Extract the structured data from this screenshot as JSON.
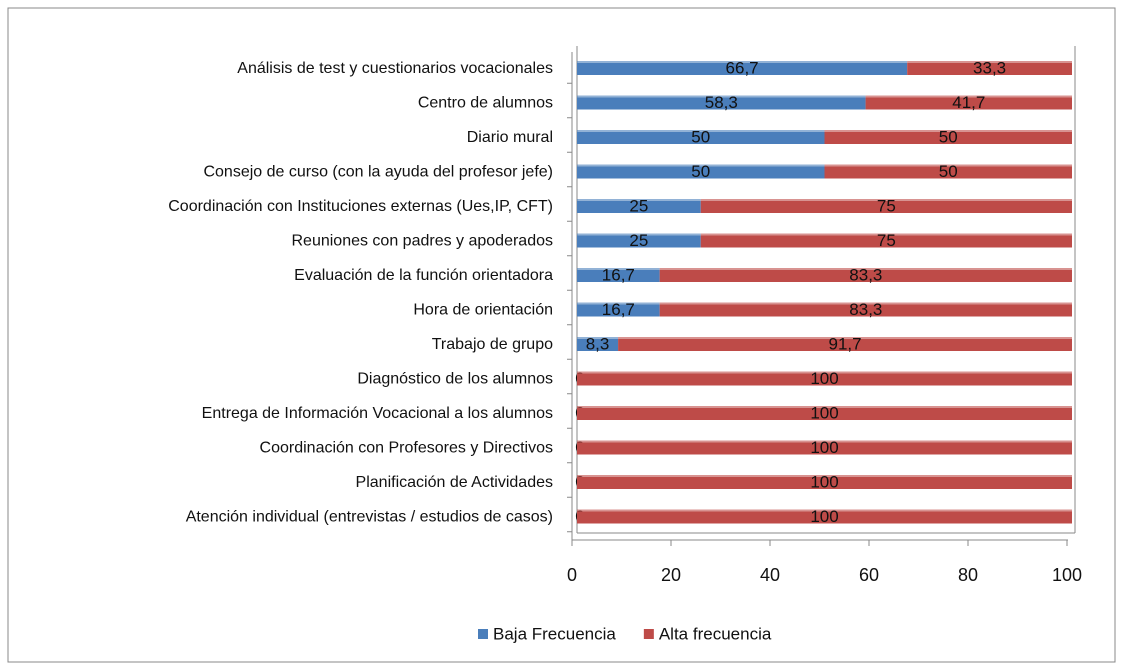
{
  "chart_data": {
    "type": "stacked_bar_horizontal",
    "categories": [
      "Análisis de test y cuestionarios vocacionales",
      "Centro de alumnos",
      "Diario mural",
      "Consejo de curso (con la ayuda del profesor jefe)",
      "Coordinación con Instituciones externas (Ues,IP, CFT)",
      "Reuniones con padres y apoderados",
      "Evaluación de la función orientadora",
      "Hora de orientación",
      "Trabajo de grupo",
      "Diagnóstico de los alumnos",
      "Entrega de Información Vocacional a los alumnos",
      "Coordinación con Profesores y Directivos",
      "Planificación de Actividades",
      "Atención individual (entrevistas / estudios de casos)"
    ],
    "series": [
      {
        "name": "Baja Frecuencia",
        "color": "#4a7ebb",
        "values": [
          66.7,
          58.3,
          50,
          50,
          25,
          25,
          16.7,
          16.7,
          8.3,
          0,
          0,
          0,
          0,
          0
        ],
        "value_labels": [
          "66,7",
          "58,3",
          "50",
          "50",
          "25",
          "25",
          "16,7",
          "16,7",
          "8,3",
          "0",
          "0",
          "0",
          "0",
          "0"
        ]
      },
      {
        "name": "Alta frecuencia",
        "color": "#be4b48",
        "values": [
          33.3,
          41.7,
          50,
          50,
          75,
          75,
          83.3,
          83.3,
          91.7,
          100,
          100,
          100,
          100,
          100
        ],
        "value_labels": [
          "33,3",
          "41,7",
          "50",
          "50",
          "75",
          "75",
          "83,3",
          "83,3",
          "91,7",
          "100",
          "100",
          "100",
          "100",
          "100"
        ]
      }
    ],
    "xlim": [
      0,
      100
    ],
    "xticks": [
      0,
      20,
      40,
      60,
      80,
      100
    ],
    "legend": "bottom"
  }
}
